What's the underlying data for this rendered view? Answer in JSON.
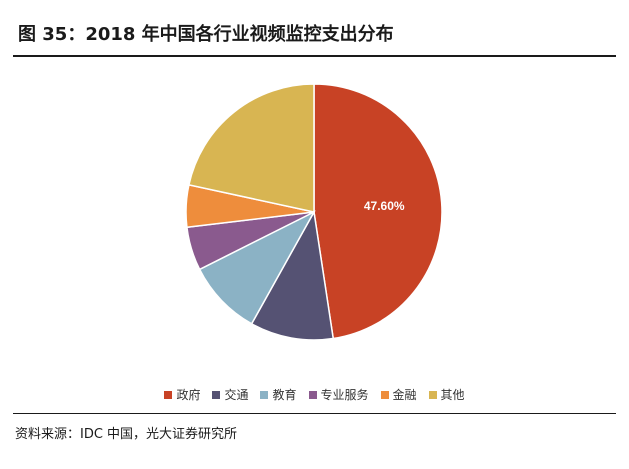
{
  "title": "图 35：2018 年中国各行业视频监控支出分布",
  "source": "资料来源：IDC 中国，光大证券研究所",
  "chart_data": {
    "type": "pie",
    "title": "",
    "categories": [
      "政府",
      "交通",
      "教育",
      "专业服务",
      "金融",
      "其他"
    ],
    "values": [
      47.6,
      10.5,
      9.5,
      5.5,
      5.3,
      21.6
    ],
    "colors": [
      "#C84225",
      "#555273",
      "#8BB2C5",
      "#8A5A8E",
      "#EE8D3C",
      "#D8B552"
    ],
    "data_labels": [
      {
        "category": "政府",
        "text": "47.60%"
      }
    ],
    "legend_position": "bottom"
  }
}
